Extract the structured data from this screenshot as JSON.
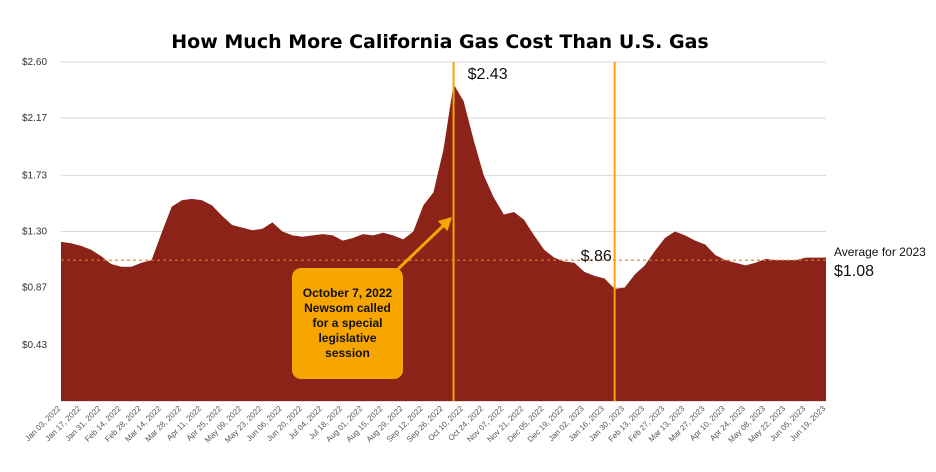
{
  "chart_data": {
    "type": "area",
    "title": "How Much More California Gas Cost Than U.S. Gas",
    "xlabel": "",
    "ylabel": "",
    "ylim": [
      0,
      2.6
    ],
    "grid": "horizontal",
    "y_ticks": [
      "$2.60",
      "$2.17",
      "$1.73",
      "$1.30",
      "$0.87",
      "$0.43"
    ],
    "y_tick_values": [
      2.6,
      2.17,
      1.73,
      1.3,
      0.87,
      0.43
    ],
    "x_tick_labels": [
      "Jan 03, 2022",
      "Jan 17, 2022",
      "Jan 31, 2022",
      "Feb 14, 2022",
      "Feb 28, 2022",
      "Mar 14, 2022",
      "Mar 28, 2022",
      "Apr 11, 2022",
      "Apr 25, 2022",
      "May 09, 2022",
      "May 23, 2022",
      "Jun 06, 2022",
      "Jun 20, 2022",
      "Jul 04, 2022",
      "Jul 18, 2022",
      "Aug 01, 2022",
      "Aug 15, 2022",
      "Aug 29, 2022",
      "Sep 12, 2022",
      "Sep 26, 2022",
      "Oct 10, 2022",
      "Oct 24, 2022",
      "Nov 07, 2022",
      "Nov 21, 2022",
      "Dec 05, 2022",
      "Dec 19, 2022",
      "Jan 02, 2023",
      "Jan 16, 2023",
      "Jan 30, 2023",
      "Feb 13, 2023",
      "Feb 27, 2023",
      "Mar 13, 2023",
      "Mar 27, 2023",
      "Apr 10, 2023",
      "Apr 24, 2023",
      "May 08, 2023",
      "May 22, 2023",
      "Jun 05, 2023",
      "Jun 19, 2023"
    ],
    "series": [
      {
        "color": "#8b2318",
        "values": [
          1.22,
          1.21,
          1.19,
          1.16,
          1.11,
          1.05,
          1.03,
          1.03,
          1.06,
          1.08,
          1.29,
          1.49,
          1.54,
          1.55,
          1.54,
          1.5,
          1.42,
          1.35,
          1.33,
          1.31,
          1.32,
          1.37,
          1.3,
          1.27,
          1.26,
          1.27,
          1.28,
          1.27,
          1.23,
          1.25,
          1.28,
          1.27,
          1.29,
          1.27,
          1.24,
          1.3,
          1.5,
          1.6,
          1.93,
          2.43,
          2.3,
          2.0,
          1.73,
          1.56,
          1.43,
          1.45,
          1.39,
          1.27,
          1.16,
          1.1,
          1.07,
          1.06,
          0.99,
          0.96,
          0.94,
          0.86,
          0.87,
          0.97,
          1.04,
          1.15,
          1.25,
          1.3,
          1.27,
          1.23,
          1.2,
          1.12,
          1.08,
          1.06,
          1.04,
          1.06,
          1.09,
          1.08,
          1.08,
          1.08,
          1.1,
          1.1,
          1.1
        ]
      }
    ],
    "reference_lines": {
      "average": {
        "value": 1.08,
        "color": "#e87722",
        "caption": "Average for 2023",
        "label": "$1.08"
      },
      "peak": {
        "index": 39,
        "color": "#f7a500",
        "label": "$2.43"
      },
      "trough": {
        "index": 55,
        "color": "#f7a500",
        "label": "$.86"
      }
    },
    "callout": {
      "text": "October 7, 2022\nNewsom called\nfor a special\nlegislative\nsession",
      "color": "#f7a500"
    },
    "legend": "none"
  }
}
